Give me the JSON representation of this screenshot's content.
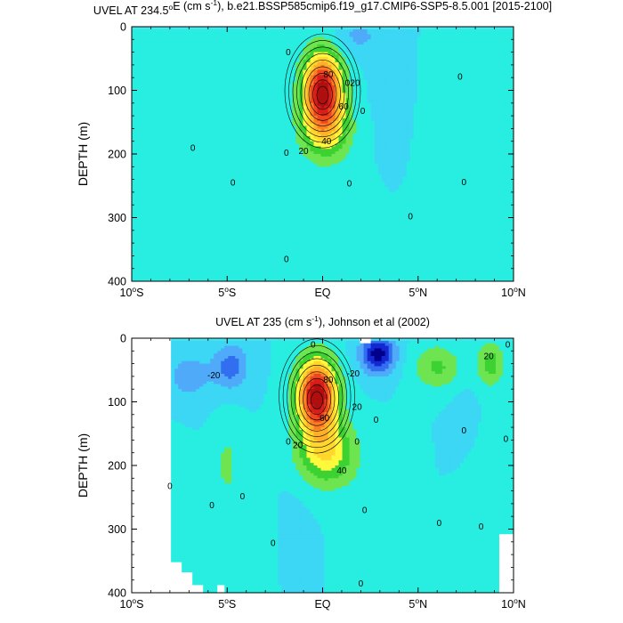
{
  "chart_data": [
    {
      "type": "heatmap",
      "title": "UVEL AT 234.5°E (cm s-1), b.e21.BSSP585cmip6.f19_g17.CMIP6-SSP5-8.5.001 [2015-2100]",
      "title_parts": {
        "pre": "UVEL AT 234.5",
        "deg": "o",
        "mid": "E (cm s",
        "sup": "-1",
        "post": "), b.e21.BSSP585cmip6.f19_g17.CMIP6-SSP5-8.5.001 [2015-2100]"
      },
      "ylabel": "DEPTH (m)",
      "xlim": [
        -10,
        10
      ],
      "ylim": [
        0,
        400
      ],
      "y_inverted": true,
      "x_ticks": [
        -10,
        -5,
        0,
        5,
        10
      ],
      "x_tick_labels": [
        {
          "main": "10",
          "deg": "o",
          "hem": "S"
        },
        {
          "main": "5",
          "deg": "o",
          "hem": "S"
        },
        {
          "main": "EQ",
          "deg": "",
          "hem": ""
        },
        {
          "main": "5",
          "deg": "o",
          "hem": "N"
        },
        {
          "main": "10",
          "deg": "o",
          "hem": "N"
        }
      ],
      "y_ticks": [
        "0",
        "100",
        "200",
        "300",
        "400"
      ],
      "contour_interval": 10,
      "jet_core": {
        "lat": 0.0,
        "depth": 100,
        "max_speed": 90
      },
      "features": [
        {
          "lat": 0.0,
          "depth": 100,
          "amp": 95,
          "wlat": 1.0,
          "wdepth": 58
        },
        {
          "lat": 0.2,
          "depth": 165,
          "amp": 30,
          "wlat": 1.3,
          "wdepth": 45
        },
        {
          "lat": -2.0,
          "depth": 340,
          "amp": 4,
          "wlat": 6.0,
          "wdepth": 140
        },
        {
          "lat": 5.8,
          "depth": 200,
          "amp": 4,
          "wlat": 1.3,
          "wdepth": 220
        },
        {
          "lat": 1.8,
          "depth": 15,
          "amp": -12,
          "wlat": 1.3,
          "wdepth": 30
        },
        {
          "lat": 4.0,
          "depth": 110,
          "amp": -3,
          "wlat": 1.5,
          "wdepth": 180
        },
        {
          "lat": -9.8,
          "depth": 45,
          "amp": 5,
          "wlat": 0.4,
          "wdepth": 15
        }
      ],
      "contour_labels": [
        {
          "text": "80",
          "lat": 0.3,
          "depth": 75
        },
        {
          "text": "60",
          "lat": 1.1,
          "depth": 125
        },
        {
          "text": "40",
          "lat": 0.2,
          "depth": 180
        },
        {
          "text": "20",
          "lat": 1.7,
          "depth": 88
        },
        {
          "text": "20",
          "lat": -1.0,
          "depth": 195
        },
        {
          "text": "0",
          "lat": -1.8,
          "depth": 40
        },
        {
          "text": "0",
          "lat": 1.3,
          "depth": 88
        },
        {
          "text": "0",
          "lat": 2.1,
          "depth": 132
        },
        {
          "text": "0",
          "lat": -6.8,
          "depth": 190
        },
        {
          "text": "0",
          "lat": -4.7,
          "depth": 245
        },
        {
          "text": "0",
          "lat": -1.9,
          "depth": 198
        },
        {
          "text": "0",
          "lat": 1.4,
          "depth": 246
        },
        {
          "text": "0",
          "lat": 4.6,
          "depth": 298
        },
        {
          "text": "0",
          "lat": 7.4,
          "depth": 244
        },
        {
          "text": "0",
          "lat": 7.2,
          "depth": 78
        },
        {
          "text": "0",
          "lat": -1.9,
          "depth": 365
        }
      ],
      "masks": []
    },
    {
      "type": "heatmap",
      "title": "UVEL AT 235 (cm s-1), Johnson et al (2002)",
      "title_parts": {
        "pre": "UVEL AT 235",
        "deg": "",
        "mid": " (cm s",
        "sup": "-1",
        "post": "), Johnson et al (2002)"
      },
      "ylabel": "DEPTH (m)",
      "xlim": [
        -10,
        10
      ],
      "ylim": [
        0,
        400
      ],
      "y_inverted": true,
      "x_ticks": [
        -10,
        -5,
        0,
        5,
        10
      ],
      "x_tick_labels": [
        {
          "main": "10",
          "deg": "o",
          "hem": "S"
        },
        {
          "main": "5",
          "deg": "o",
          "hem": "S"
        },
        {
          "main": "EQ",
          "deg": "",
          "hem": ""
        },
        {
          "main": "5",
          "deg": "o",
          "hem": "N"
        },
        {
          "main": "10",
          "deg": "o",
          "hem": "N"
        }
      ],
      "y_ticks": [
        "0",
        "100",
        "200",
        "300",
        "400"
      ],
      "contour_interval": 10,
      "jet_core": {
        "lat": -0.3,
        "depth": 90,
        "max_speed": 90
      },
      "features": [
        {
          "lat": -0.3,
          "depth": 90,
          "amp": 100,
          "wlat": 1.0,
          "wdepth": 55
        },
        {
          "lat": 0.2,
          "depth": 180,
          "amp": 40,
          "wlat": 1.5,
          "wdepth": 50
        },
        {
          "lat": 2.9,
          "depth": 25,
          "amp": -45,
          "wlat": 0.9,
          "wdepth": 30
        },
        {
          "lat": -4.8,
          "depth": 45,
          "amp": -25,
          "wlat": 0.9,
          "wdepth": 35
        },
        {
          "lat": -7.0,
          "depth": 60,
          "amp": -15,
          "wlat": 1.2,
          "wdepth": 40
        },
        {
          "lat": 6.0,
          "depth": 45,
          "amp": 22,
          "wlat": 1.2,
          "wdepth": 35
        },
        {
          "lat": 8.8,
          "depth": 40,
          "amp": 25,
          "wlat": 0.7,
          "wdepth": 35
        },
        {
          "lat": -5.0,
          "depth": 200,
          "amp": 12,
          "wlat": 0.7,
          "wdepth": 70
        },
        {
          "lat": -8.0,
          "depth": 280,
          "amp": 8,
          "wlat": 1.0,
          "wdepth": 90
        },
        {
          "lat": 4.5,
          "depth": 230,
          "amp": 10,
          "wlat": 0.6,
          "wdepth": 80
        },
        {
          "lat": 8.3,
          "depth": 250,
          "amp": 8,
          "wlat": 1.0,
          "wdepth": 110
        },
        {
          "lat": 1.8,
          "depth": 320,
          "amp": 8,
          "wlat": 0.9,
          "wdepth": 80
        },
        {
          "lat": -3.0,
          "depth": 330,
          "amp": 6,
          "wlat": 1.0,
          "wdepth": 80
        },
        {
          "lat": 7.5,
          "depth": 140,
          "amp": -6,
          "wlat": 0.8,
          "wdepth": 60
        },
        {
          "lat": -1.8,
          "depth": 320,
          "amp": -5,
          "wlat": 1.0,
          "wdepth": 80
        }
      ],
      "contour_labels": [
        {
          "text": "80",
          "lat": 0.3,
          "depth": 65
        },
        {
          "text": "60",
          "lat": 0.1,
          "depth": 125
        },
        {
          "text": "40",
          "lat": 1.0,
          "depth": 208
        },
        {
          "text": "20",
          "lat": 1.8,
          "depth": 108
        },
        {
          "text": "20",
          "lat": -1.3,
          "depth": 168
        },
        {
          "text": "-20",
          "lat": 1.6,
          "depth": 55
        },
        {
          "text": "-20",
          "lat": -5.7,
          "depth": 58
        },
        {
          "text": "20",
          "lat": 8.7,
          "depth": 28
        },
        {
          "text": "0",
          "lat": -0.5,
          "depth": 10
        },
        {
          "text": "0",
          "lat": 2.8,
          "depth": 128
        },
        {
          "text": "0",
          "lat": -1.8,
          "depth": 162
        },
        {
          "text": "0",
          "lat": 1.8,
          "depth": 162
        },
        {
          "text": "0",
          "lat": -8.0,
          "depth": 232
        },
        {
          "text": "0",
          "lat": -5.8,
          "depth": 262
        },
        {
          "text": "0",
          "lat": -4.2,
          "depth": 248
        },
        {
          "text": "0",
          "lat": -2.6,
          "depth": 322
        },
        {
          "text": "0",
          "lat": 2.2,
          "depth": 270
        },
        {
          "text": "0",
          "lat": 6.1,
          "depth": 290
        },
        {
          "text": "0",
          "lat": 7.4,
          "depth": 145
        },
        {
          "text": "0",
          "lat": 9.6,
          "depth": 158
        },
        {
          "text": "0",
          "lat": 8.3,
          "depth": 296
        },
        {
          "text": "0",
          "lat": 2.0,
          "depth": 385
        },
        {
          "text": "0",
          "lat": 9.7,
          "depth": 10
        }
      ],
      "masks": [
        {
          "lat0": -10.0,
          "lat1": -7.9,
          "depth0": 0,
          "depth1": 400
        },
        {
          "lat0": -7.9,
          "lat1": -7.3,
          "depth0": 352,
          "depth1": 400
        },
        {
          "lat0": -7.3,
          "lat1": -6.9,
          "depth0": 370,
          "depth1": 400
        },
        {
          "lat0": -6.9,
          "lat1": -6.2,
          "depth0": 388,
          "depth1": 400
        },
        {
          "lat0": -5.6,
          "lat1": -5.1,
          "depth0": 390,
          "depth1": 400
        },
        {
          "lat0": 9.2,
          "lat1": 10.0,
          "depth0": 310,
          "depth1": 400
        },
        {
          "lat0": 2.0,
          "lat1": 2.5,
          "depth0": 0,
          "depth1": 8
        }
      ]
    }
  ]
}
